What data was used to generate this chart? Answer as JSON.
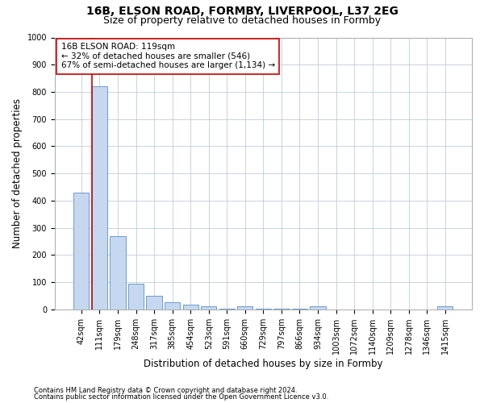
{
  "title1": "16B, ELSON ROAD, FORMBY, LIVERPOOL, L37 2EG",
  "title2": "Size of property relative to detached houses in Formby",
  "xlabel": "Distribution of detached houses by size in Formby",
  "ylabel": "Number of detached properties",
  "categories": [
    "42sqm",
    "111sqm",
    "179sqm",
    "248sqm",
    "317sqm",
    "385sqm",
    "454sqm",
    "523sqm",
    "591sqm",
    "660sqm",
    "729sqm",
    "797sqm",
    "866sqm",
    "934sqm",
    "1003sqm",
    "1072sqm",
    "1140sqm",
    "1209sqm",
    "1278sqm",
    "1346sqm",
    "1415sqm"
  ],
  "values": [
    430,
    820,
    270,
    93,
    50,
    25,
    18,
    12,
    2,
    12,
    2,
    2,
    2,
    12,
    0,
    0,
    0,
    0,
    0,
    0,
    12
  ],
  "bar_color": "#c5d8f0",
  "bar_edge_color": "#5b8ec4",
  "property_line_color": "#cc0000",
  "annotation_text": "16B ELSON ROAD: 119sqm\n← 32% of detached houses are smaller (546)\n67% of semi-detached houses are larger (1,134) →",
  "annotation_box_color": "#ffffff",
  "annotation_box_edge_color": "#cc0000",
  "ylim": [
    0,
    1000
  ],
  "yticks": [
    0,
    100,
    200,
    300,
    400,
    500,
    600,
    700,
    800,
    900,
    1000
  ],
  "footer1": "Contains HM Land Registry data © Crown copyright and database right 2024.",
  "footer2": "Contains public sector information licensed under the Open Government Licence v3.0.",
  "background_color": "#ffffff",
  "grid_color": "#c0ccd8",
  "title1_fontsize": 10,
  "title2_fontsize": 9,
  "xlabel_fontsize": 8.5,
  "ylabel_fontsize": 8.5,
  "tick_fontsize": 7,
  "annot_fontsize": 7.5,
  "footer_fontsize": 6
}
